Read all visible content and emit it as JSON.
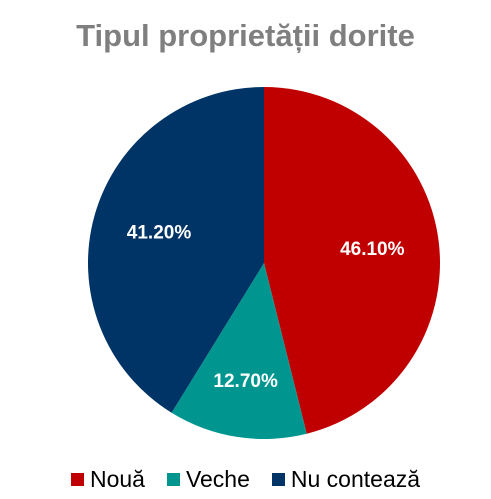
{
  "chart_data": {
    "type": "pie",
    "title": "Tipul proprietății dorite",
    "legend_position": "bottom",
    "slices": [
      {
        "name": "Nouă",
        "value": 46.1,
        "label": "46.10%",
        "color": "#c00000"
      },
      {
        "name": "Veche",
        "value": 12.7,
        "label": "12.70%",
        "color": "#00968f"
      },
      {
        "name": "Nu contează",
        "value": 41.2,
        "label": "41.20%",
        "color": "#003366"
      }
    ]
  }
}
